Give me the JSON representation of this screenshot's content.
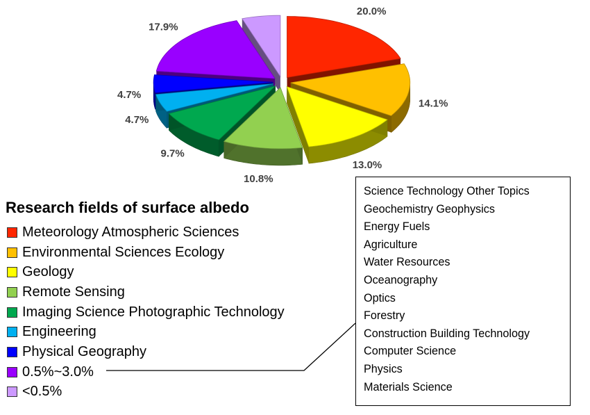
{
  "legend": {
    "title": "Research fields of surface albedo",
    "items": [
      {
        "label": "Meteorology Atmospheric Sciences",
        "color": "#ff2600"
      },
      {
        "label": "Environmental Sciences Ecology",
        "color": "#ffc000"
      },
      {
        "label": "Geology",
        "color": "#ffff00"
      },
      {
        "label": "Remote Sensing",
        "color": "#92d050"
      },
      {
        "label": "Imaging Science Photographic Technology",
        "color": "#00a84f"
      },
      {
        "label": "Engineering",
        "color": "#00b0f0"
      },
      {
        "label": "Physical Geography",
        "color": "#0000ff"
      },
      {
        "label": "0.5%~3.0%",
        "color": "#9900ff"
      },
      {
        "label": "<0.5%",
        "color": "#cc99ff"
      }
    ]
  },
  "others_box": {
    "items": [
      "Science Technology Other Topics",
      "Geochemistry Geophysics",
      "Energy Fuels",
      "Agriculture",
      "Water Resources",
      "Oceanography",
      "Optics",
      "Forestry",
      "Construction Building Technology",
      "Computer Science",
      "Physics",
      "Materials Science"
    ]
  },
  "chart_data": {
    "type": "pie",
    "style": "3D exploded pie",
    "title": "Research fields of surface albedo",
    "slices": [
      {
        "name": "Meteorology Atmospheric Sciences",
        "value": 20.0,
        "label": "20.0%",
        "color": "#ff2600"
      },
      {
        "name": "Environmental Sciences Ecology",
        "value": 14.1,
        "label": "14.1%",
        "color": "#ffc000"
      },
      {
        "name": "Geology",
        "value": 13.0,
        "label": "13.0%",
        "color": "#ffff00"
      },
      {
        "name": "Remote Sensing",
        "value": 10.8,
        "label": "10.8%",
        "color": "#92d050"
      },
      {
        "name": "Imaging Science Photographic Technology",
        "value": 9.7,
        "label": "9.7%",
        "color": "#00a84f"
      },
      {
        "name": "Engineering",
        "value": 4.7,
        "label": "4.7%",
        "color": "#00b0f0"
      },
      {
        "name": "Physical Geography",
        "value": 4.7,
        "label": "4.7%",
        "color": "#0000ff"
      },
      {
        "name": "0.5%~3.0%",
        "value": 17.9,
        "label": "17.9%",
        "color": "#9900ff"
      },
      {
        "name": "<0.5%",
        "value": 5.2,
        "label": "5.2%",
        "color": "#cc99ff"
      }
    ],
    "legend_position": "bottom-left"
  }
}
